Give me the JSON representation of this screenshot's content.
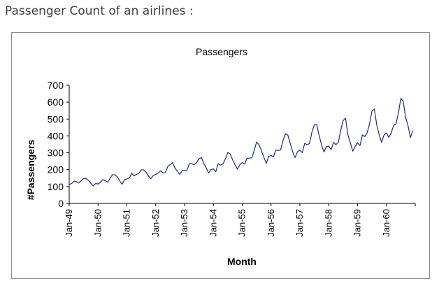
{
  "page": {
    "caption": "Passenger Count of an airlines :"
  },
  "chart_data": {
    "type": "line",
    "title": "Passengers",
    "xlabel": "Month",
    "ylabel": "#Passengers",
    "ylim": [
      0,
      700
    ],
    "yticks": [
      0,
      100,
      200,
      300,
      400,
      500,
      600,
      700
    ],
    "xtick_labels": [
      "Jan-49",
      "Jan-50",
      "Jan-51",
      "Jan-52",
      "Jan-53",
      "Jan-54",
      "Jan-55",
      "Jan-56",
      "Jan-57",
      "Jan-58",
      "Jan-59",
      "Jan-60"
    ],
    "grid": false,
    "legend": "none",
    "line_color": "#1f2a7a",
    "x_start": "Jan-49",
    "x_step": "month",
    "series": [
      {
        "values": [
          112,
          118,
          132,
          129,
          121,
          135,
          148,
          148,
          136,
          119,
          104,
          118,
          115,
          126,
          141,
          135,
          125,
          149,
          170,
          170,
          158,
          133,
          114,
          140,
          145,
          150,
          178,
          163,
          172,
          178,
          199,
          199,
          184,
          162,
          146,
          166,
          171,
          180,
          193,
          181,
          183,
          218,
          230,
          242,
          209,
          191,
          172,
          194,
          196,
          196,
          236,
          235,
          229,
          243,
          264,
          272,
          237,
          211,
          180,
          201,
          204,
          188,
          235,
          227,
          234,
          264,
          302,
          293,
          259,
          229,
          203,
          229,
          242,
          233,
          267,
          269,
          270,
          315,
          364,
          347,
          312,
          274,
          237,
          278,
          284,
          277,
          317,
          313,
          318,
          374,
          413,
          405,
          355,
          306,
          271,
          306,
          315,
          301,
          356,
          348,
          355,
          422,
          465,
          467,
          404,
          347,
          305,
          336,
          340,
          318,
          362,
          348,
          363,
          435,
          491,
          505,
          404,
          359,
          310,
          337,
          360,
          342,
          406,
          396,
          420,
          472,
          548,
          559,
          463,
          407,
          362,
          405,
          417,
          391,
          419,
          461,
          472,
          535,
          622,
          606,
          508,
          461,
          390,
          432
        ]
      }
    ]
  }
}
